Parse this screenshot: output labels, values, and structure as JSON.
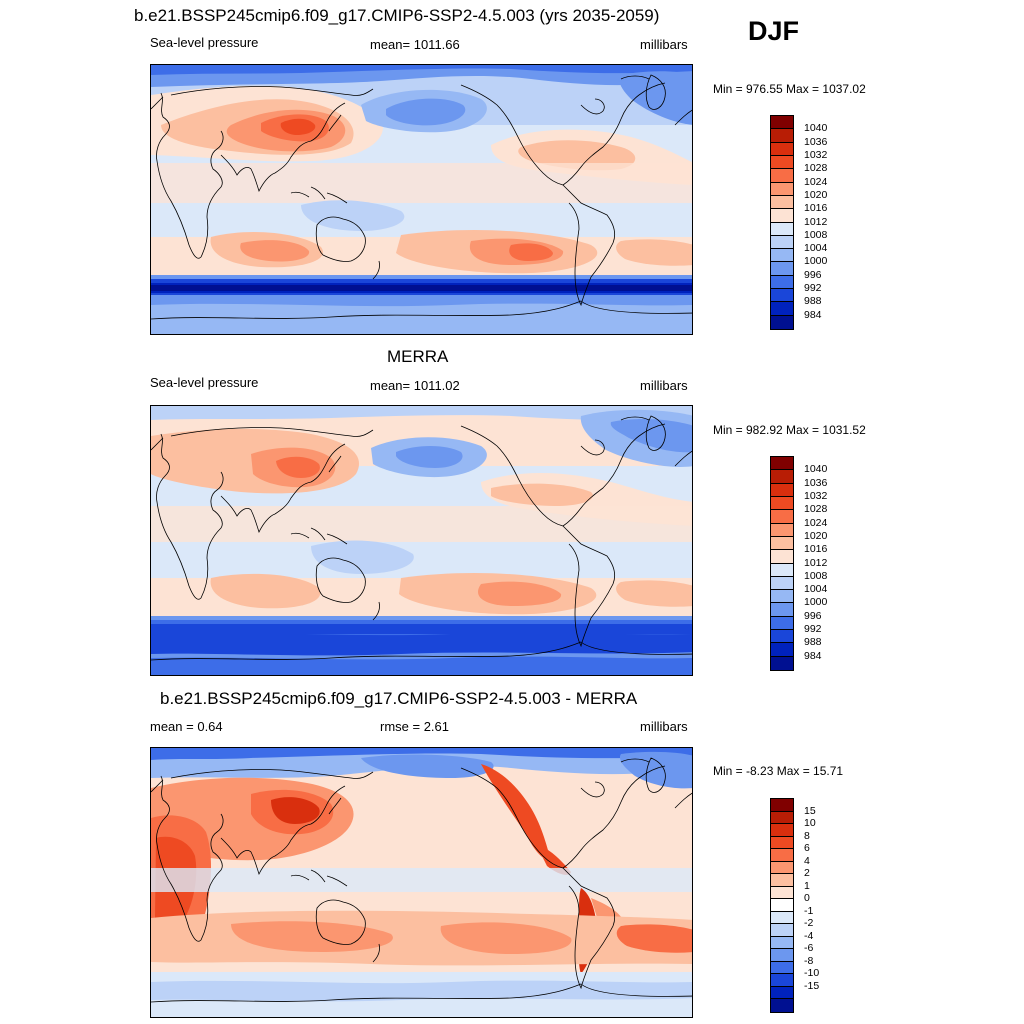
{
  "season": "DJF",
  "panels": [
    {
      "id": "model",
      "title": "b.e21.BSSP245cmip6.f09_g17.CMIP6-SSP2-4.5.003 (yrs 2035-2059)",
      "left_label": "Sea-level pressure",
      "center_label": "mean= 1011.66",
      "right_label": "millibars",
      "minmax": "Min = 976.55 Max = 1037.02",
      "colorbar_labels": [
        "1040",
        "1036",
        "1032",
        "1028",
        "1024",
        "1020",
        "1016",
        "1012",
        "1008",
        "1004",
        "1000",
        "996",
        "992",
        "988",
        "984"
      ]
    },
    {
      "id": "obs",
      "title": "MERRA",
      "left_label": "Sea-level pressure",
      "center_label": "mean= 1011.02",
      "right_label": "millibars",
      "minmax": "Min = 982.92 Max = 1031.52",
      "colorbar_labels": [
        "1040",
        "1036",
        "1032",
        "1028",
        "1024",
        "1020",
        "1016",
        "1012",
        "1008",
        "1004",
        "1000",
        "996",
        "992",
        "988",
        "984"
      ]
    },
    {
      "id": "diff",
      "title": "b.e21.BSSP245cmip6.f09_g17.CMIP6-SSP2-4.5.003 - MERRA",
      "left_label": "mean =   0.64",
      "center_label": "rmse =   2.61",
      "right_label": "millibars",
      "minmax": "Min =  -8.23 Max =  15.71",
      "colorbar_labels": [
        "15",
        "10",
        "8",
        "6",
        "4",
        "2",
        "1",
        "0",
        "-1",
        "-2",
        "-4",
        "-6",
        "-8",
        "-10",
        "-15"
      ]
    }
  ],
  "colors": {
    "abs_scale": [
      "#800000",
      "#b81d05",
      "#d92f0e",
      "#ee4a22",
      "#f86d45",
      "#fb9670",
      "#fcbfa0",
      "#fde3d4",
      "#dbe8f9",
      "#bcd2f7",
      "#96b8f4",
      "#6c97ef",
      "#3d6de8",
      "#1a46d9",
      "#0022bd",
      "#001091"
    ],
    "diff_scale": [
      "#800000",
      "#b81d05",
      "#d92f0e",
      "#ee4a22",
      "#f86d45",
      "#fb9670",
      "#fcbfa0",
      "#fde3d4",
      "#ffffff",
      "#dbe8f9",
      "#bcd2f7",
      "#96b8f4",
      "#6c97ef",
      "#3d6de8",
      "#1a46d9",
      "#0022bd",
      "#001091"
    ],
    "coast": "#000000"
  }
}
